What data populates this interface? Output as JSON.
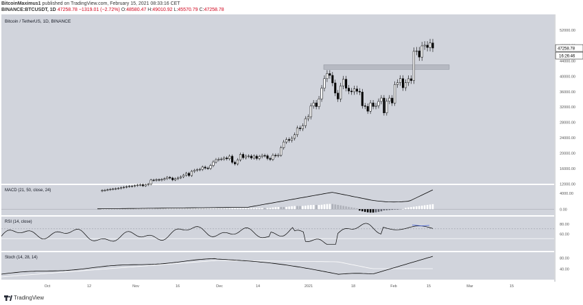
{
  "header": {
    "author": "BitcoinMaximus1",
    "published_text": "published on TradingView.com, February 15, 2021 08:33:16 CET",
    "symbol": "BINANCE:BTCUSDT, 1D",
    "last": "47258.78",
    "change": "−1319.01 (−2.72%)",
    "o_label": "O:",
    "o": "48580.47",
    "h_label": "H:",
    "h": "49010.92",
    "l_label": "L:",
    "l": "45570.79",
    "c_label": "C:",
    "c": "47258.78"
  },
  "colors": {
    "panel_bg": "#d1d4dc",
    "accent": "#000000",
    "sma": "#ffffff",
    "rsi_marker": "#3b5bdb"
  },
  "footer": {
    "brand": "TradingView"
  },
  "chart_data": [
    {
      "type": "candlestick",
      "title": "Bitcoin / TetherUS, 1D, BINANCE",
      "ylim": [
        12000,
        56000
      ],
      "y_ticks": [
        "52000.00",
        "48000.00",
        "44000.00",
        "40000.00",
        "36000.00",
        "32000.00",
        "28000.00",
        "24000.00",
        "20000.00",
        "16000.00",
        "12000.00"
      ],
      "price_tag": "47258.78",
      "countdown_tag": "16:26:46",
      "resistance_zone": [
        41700,
        42900
      ],
      "x_ticks": [
        "Oct",
        "12",
        "Nov",
        "16",
        "Dec",
        "14",
        "2021",
        "18",
        "Feb",
        "15",
        "Mar",
        "15"
      ],
      "series": [
        {
          "closes": [
            10240,
            10330,
            10440,
            10560,
            10630,
            10720,
            10790,
            10960,
            11100,
            11240,
            11330,
            11360,
            11500,
            11650,
            11750,
            11450,
            11720,
            11880,
            12950,
            12900,
            13050,
            12950,
            13100,
            13300,
            13640,
            13460,
            13000,
            13280,
            13550,
            13790,
            14200,
            14700,
            14120,
            15200,
            15470,
            15620,
            15720,
            16310,
            16060,
            15960,
            16720,
            17670,
            18210,
            18370,
            18400,
            18690,
            18480,
            19140,
            17550,
            17150,
            18200,
            19620,
            18760,
            19130,
            19180,
            18690,
            19160,
            18550,
            19050,
            19320,
            19270,
            18560,
            18320,
            19410,
            19270,
            19440,
            21350,
            22840,
            23480,
            23260,
            23780,
            24720,
            26460,
            26270,
            27050,
            28890,
            29360,
            32200,
            33000,
            32040,
            34040,
            36820,
            39290,
            40620,
            40150,
            38190,
            35550,
            34010,
            37390,
            39150,
            36830,
            36070,
            35880,
            36630,
            36020,
            35820,
            32250,
            32100,
            30840,
            33000,
            32070,
            32280,
            33380,
            34260,
            30400,
            33430,
            34250,
            32960,
            37760,
            38270,
            39310,
            36940,
            38250,
            39270,
            38800,
            46400,
            46520,
            44900,
            47810,
            48000,
            47400,
            48580,
            47258
          ]
        }
      ]
    },
    {
      "type": "line",
      "title": "MACD (21, 50, close, 24)",
      "ylim": [
        -1500,
        6000
      ],
      "y_ticks": [
        "4000.00",
        "0.00"
      ]
    },
    {
      "type": "line",
      "title": "RSI (14, close)",
      "ylim": [
        25,
        95
      ],
      "y_ticks": [
        "80.00",
        "60.00"
      ]
    },
    {
      "type": "line",
      "title": "Stoch (14, 28, 14)",
      "ylim": [
        0,
        100
      ],
      "y_ticks": [
        "80.00",
        "40.00"
      ]
    }
  ]
}
